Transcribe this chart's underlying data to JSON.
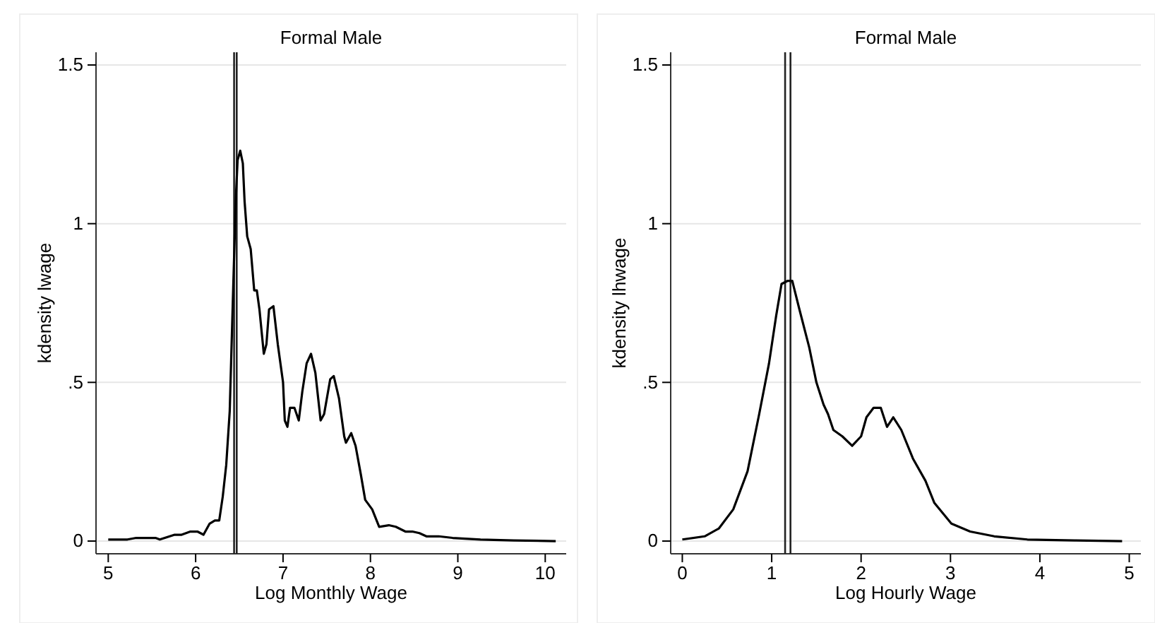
{
  "chart_data": [
    {
      "type": "line",
      "title": "Formal Male",
      "xlabel": "Log Monthly Wage",
      "ylabel": "kdensity lwage",
      "xlim": [
        4.86,
        10.24
      ],
      "xticks": [
        5,
        6,
        7,
        8,
        9,
        10
      ],
      "ylim": [
        -0.04,
        1.54
      ],
      "yticks": [
        0,
        {
          "value": 0.5,
          "label": ".5"
        },
        1,
        1.5
      ],
      "grid": "y",
      "color": "#000000",
      "x": [
        5,
        5.22,
        5.32,
        5.54,
        5.59,
        5.76,
        5.84,
        5.94,
        6.02,
        6.09,
        6.16,
        6.22,
        6.27,
        6.31,
        6.35,
        6.39,
        6.43,
        6.46,
        6.48,
        6.51,
        6.54,
        6.56,
        6.59,
        6.63,
        6.67,
        6.7,
        6.73,
        6.78,
        6.81,
        6.84,
        6.89,
        6.94,
        7,
        7.02,
        7.05,
        7.08,
        7.13,
        7.18,
        7.22,
        7.27,
        7.32,
        7.37,
        7.43,
        7.47,
        7.54,
        7.58,
        7.64,
        7.7,
        7.72,
        7.78,
        7.83,
        7.89,
        7.94,
        8.02,
        8.1,
        8.21,
        8.29,
        8.4,
        8.48,
        8.56,
        8.64,
        8.78,
        8.94,
        9.26,
        9.64,
        10.12
      ],
      "values": [
        0.005,
        0.005,
        0.01,
        0.01,
        0.005,
        0.02,
        0.02,
        0.03,
        0.03,
        0.02,
        0.055,
        0.065,
        0.065,
        0.14,
        0.24,
        0.41,
        0.8,
        1.08,
        1.2,
        1.23,
        1.19,
        1.07,
        0.96,
        0.92,
        0.79,
        0.79,
        0.73,
        0.59,
        0.62,
        0.73,
        0.74,
        0.62,
        0.5,
        0.38,
        0.36,
        0.42,
        0.42,
        0.38,
        0.47,
        0.56,
        0.59,
        0.53,
        0.38,
        0.4,
        0.51,
        0.52,
        0.45,
        0.33,
        0.31,
        0.34,
        0.3,
        0.21,
        0.13,
        0.1,
        0.045,
        0.05,
        0.045,
        0.03,
        0.03,
        0.025,
        0.015,
        0.015,
        0.01,
        0.005,
        0.002,
        0
      ],
      "ref_lines": [
        {
          "axis": "x",
          "value": 6.44
        },
        {
          "axis": "x",
          "value": 6.47
        }
      ]
    },
    {
      "type": "line",
      "title": "Formal Male",
      "xlabel": "Log Hourly Wage",
      "ylabel": "kdensity lhwage",
      "xlim": [
        -0.13,
        5.13
      ],
      "xticks": [
        0,
        1,
        2,
        3,
        4,
        5
      ],
      "ylim": [
        -0.04,
        1.54
      ],
      "yticks": [
        0,
        {
          "value": 0.5,
          "label": ".5"
        },
        1,
        1.5
      ],
      "grid": "y",
      "color": "#000000",
      "x": [
        0,
        0.25,
        0.41,
        0.57,
        0.73,
        0.86,
        0.97,
        1.05,
        1.11,
        1.18,
        1.23,
        1.31,
        1.42,
        1.5,
        1.58,
        1.63,
        1.69,
        1.79,
        1.9,
        2,
        2.06,
        2.14,
        2.22,
        2.29,
        2.36,
        2.45,
        2.58,
        2.72,
        2.82,
        3.01,
        3.22,
        3.49,
        3.86,
        4.39,
        4.92
      ],
      "values": [
        0.005,
        0.015,
        0.04,
        0.1,
        0.22,
        0.4,
        0.56,
        0.71,
        0.81,
        0.82,
        0.82,
        0.73,
        0.61,
        0.5,
        0.43,
        0.4,
        0.35,
        0.33,
        0.3,
        0.33,
        0.39,
        0.42,
        0.42,
        0.36,
        0.39,
        0.35,
        0.26,
        0.19,
        0.12,
        0.055,
        0.03,
        0.015,
        0.005,
        0.002,
        0
      ],
      "ref_lines": [
        {
          "axis": "x",
          "value": 1.15
        },
        {
          "axis": "x",
          "value": 1.21
        }
      ]
    }
  ]
}
